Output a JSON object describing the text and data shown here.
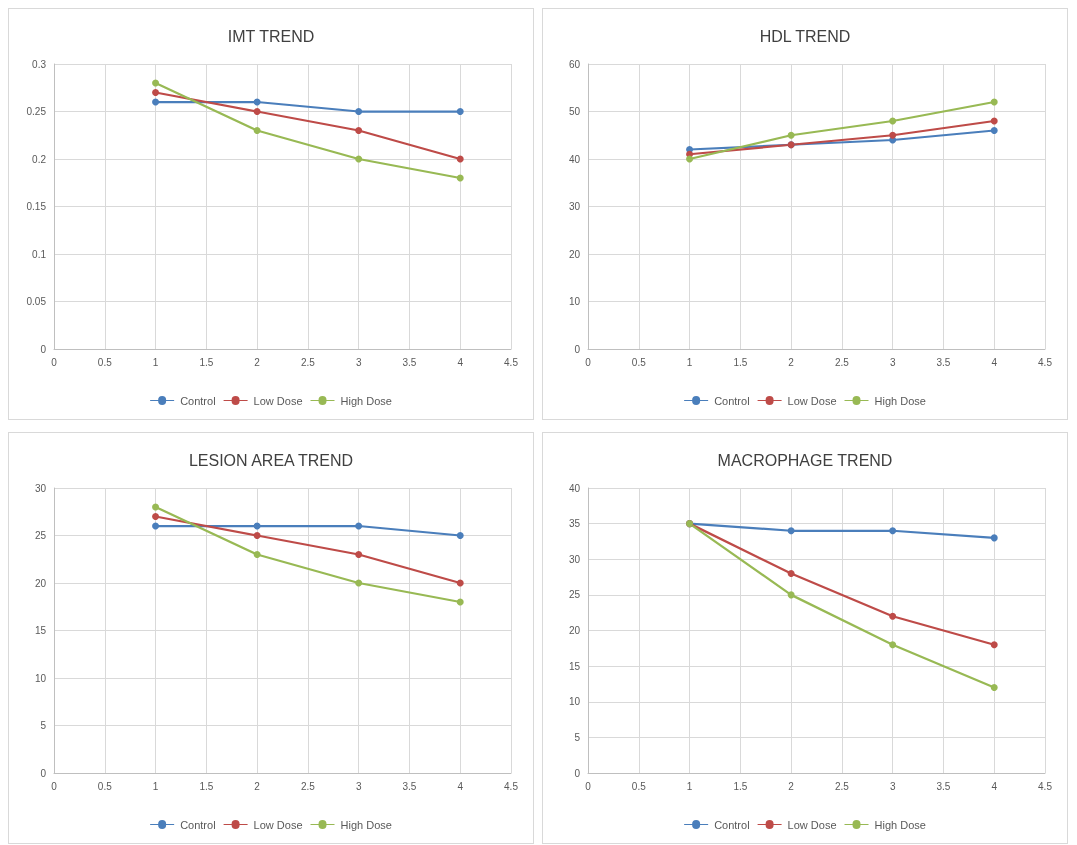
{
  "chart_data": [
    {
      "type": "line",
      "title": "IMT TREND",
      "x": [
        1,
        2,
        3,
        4
      ],
      "xlim": [
        0,
        4.5
      ],
      "xticks": [
        0,
        0.5,
        1,
        1.5,
        2,
        2.5,
        3,
        3.5,
        4,
        4.5
      ],
      "ylim": [
        0,
        0.3
      ],
      "yticks": [
        0,
        0.05,
        0.1,
        0.15,
        0.2,
        0.25,
        0.3
      ],
      "grid": true,
      "legend": "bottom",
      "marker": "circle",
      "series": [
        {
          "name": "Control",
          "color": "#4a7ebb",
          "values": [
            0.26,
            0.26,
            0.25,
            0.25
          ]
        },
        {
          "name": "Low Dose",
          "color": "#be4b48",
          "values": [
            0.27,
            0.25,
            0.23,
            0.2
          ]
        },
        {
          "name": "High Dose",
          "color": "#98b954",
          "values": [
            0.28,
            0.23,
            0.2,
            0.18
          ]
        }
      ]
    },
    {
      "type": "line",
      "title": "HDL TREND",
      "x": [
        1,
        2,
        3,
        4
      ],
      "xlim": [
        0,
        4.5
      ],
      "xticks": [
        0,
        0.5,
        1,
        1.5,
        2,
        2.5,
        3,
        3.5,
        4,
        4.5
      ],
      "ylim": [
        0,
        60
      ],
      "yticks": [
        0,
        10,
        20,
        30,
        40,
        50,
        60
      ],
      "grid": true,
      "legend": "bottom",
      "marker": "circle",
      "series": [
        {
          "name": "Control",
          "color": "#4a7ebb",
          "values": [
            42,
            43,
            44,
            46
          ]
        },
        {
          "name": "Low Dose",
          "color": "#be4b48",
          "values": [
            41,
            43,
            45,
            48
          ]
        },
        {
          "name": "High Dose",
          "color": "#98b954",
          "values": [
            40,
            45,
            48,
            52
          ]
        }
      ]
    },
    {
      "type": "line",
      "title": "LESION AREA TREND",
      "x": [
        1,
        2,
        3,
        4
      ],
      "xlim": [
        0,
        4.5
      ],
      "xticks": [
        0,
        0.5,
        1,
        1.5,
        2,
        2.5,
        3,
        3.5,
        4,
        4.5
      ],
      "ylim": [
        0,
        30
      ],
      "yticks": [
        0,
        5,
        10,
        15,
        20,
        25,
        30
      ],
      "grid": true,
      "legend": "bottom",
      "marker": "circle",
      "series": [
        {
          "name": "Control",
          "color": "#4a7ebb",
          "values": [
            26,
            26,
            26,
            25
          ]
        },
        {
          "name": "Low Dose",
          "color": "#be4b48",
          "values": [
            27,
            25,
            23,
            20
          ]
        },
        {
          "name": "High Dose",
          "color": "#98b954",
          "values": [
            28,
            23,
            20,
            18
          ]
        }
      ]
    },
    {
      "type": "line",
      "title": "MACROPHAGE TREND",
      "x": [
        1,
        2,
        3,
        4
      ],
      "xlim": [
        0,
        4.5
      ],
      "xticks": [
        0,
        0.5,
        1,
        1.5,
        2,
        2.5,
        3,
        3.5,
        4,
        4.5
      ],
      "ylim": [
        0,
        40
      ],
      "yticks": [
        0,
        5,
        10,
        15,
        20,
        25,
        30,
        35,
        40
      ],
      "grid": true,
      "legend": "bottom",
      "marker": "circle",
      "series": [
        {
          "name": "Control",
          "color": "#4a7ebb",
          "values": [
            35,
            34,
            34,
            33
          ]
        },
        {
          "name": "Low Dose",
          "color": "#be4b48",
          "values": [
            35,
            28,
            22,
            18
          ]
        },
        {
          "name": "High Dose",
          "color": "#98b954",
          "values": [
            35,
            25,
            18,
            12
          ]
        }
      ]
    }
  ]
}
